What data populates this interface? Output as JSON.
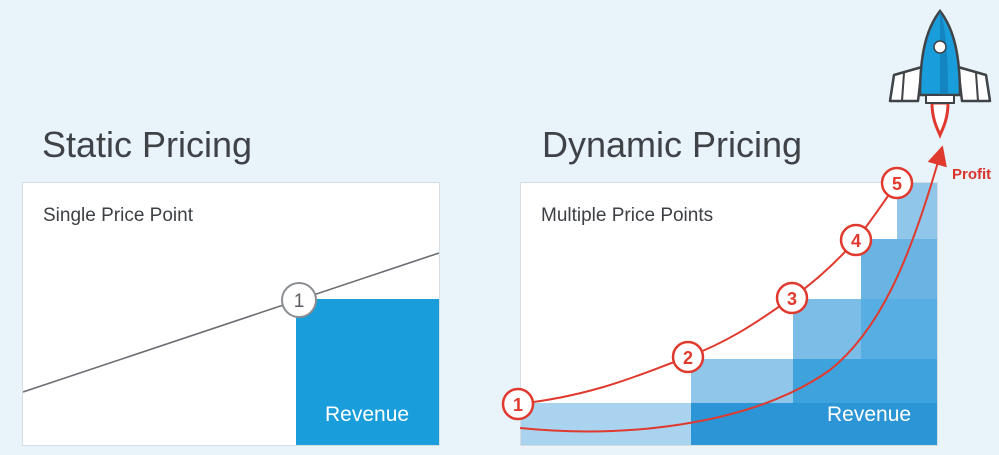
{
  "static": {
    "title": "Static Pricing",
    "subtitle": "Single Price Point",
    "revenue_label": "Revenue",
    "price_point_label": "1"
  },
  "dynamic": {
    "title": "Dynamic Pricing",
    "subtitle": "Multiple Price Points",
    "revenue_label": "Revenue",
    "price_point_labels": [
      "1",
      "2",
      "3",
      "4",
      "5"
    ],
    "profit_label": "Profit"
  },
  "colors": {
    "background": "#e8f3fa",
    "revenue_blue": "#1a9ddb",
    "step_blue_light": "#a9d3ef",
    "accent_red": "#e0392e",
    "line_gray": "#6b6e72"
  },
  "icons": [
    "rocket-icon"
  ]
}
